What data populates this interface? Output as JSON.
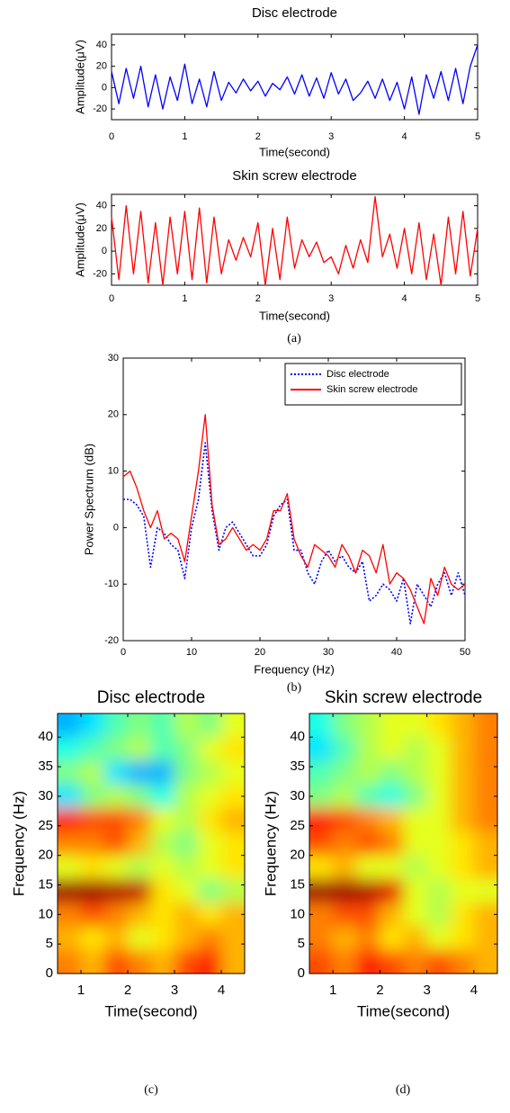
{
  "chart_data": [
    {
      "type": "line",
      "title": "Disc electrode",
      "xlabel": "Time(second)",
      "ylabel": "Amplitude(μV)",
      "xlim": [
        0,
        5
      ],
      "xticks": [
        0,
        1,
        2,
        3,
        4,
        5
      ],
      "ylim": [
        -30,
        50
      ],
      "yticks": [
        -20,
        0,
        20,
        40
      ],
      "series": [
        {
          "name": "Disc electrode",
          "color": "#0000ff",
          "linestyle": "solid",
          "x": [
            0,
            0.1,
            0.2,
            0.3,
            0.4,
            0.5,
            0.6,
            0.7,
            0.8,
            0.9,
            1,
            1.1,
            1.2,
            1.3,
            1.4,
            1.5,
            1.6,
            1.7,
            1.8,
            1.9,
            2,
            2.1,
            2.2,
            2.3,
            2.4,
            2.5,
            2.6,
            2.7,
            2.8,
            2.9,
            3,
            3.1,
            3.2,
            3.3,
            3.4,
            3.5,
            3.6,
            3.7,
            3.8,
            3.9,
            4,
            4.1,
            4.2,
            4.3,
            4.4,
            4.5,
            4.6,
            4.7,
            4.8,
            4.9,
            5
          ],
          "values": [
            15,
            -15,
            18,
            -10,
            20,
            -18,
            12,
            -20,
            10,
            -12,
            22,
            -15,
            8,
            -18,
            15,
            -12,
            5,
            -5,
            8,
            -3,
            6,
            -8,
            4,
            -2,
            10,
            -6,
            12,
            -8,
            9,
            -10,
            14,
            -6,
            8,
            -12,
            -5,
            6,
            -10,
            8,
            -12,
            5,
            -20,
            10,
            -25,
            12,
            -10,
            15,
            -12,
            18,
            -15,
            20,
            40
          ]
        }
      ]
    },
    {
      "type": "line",
      "title": "Skin screw electrode",
      "xlabel": "Time(second)",
      "ylabel": "Amplitude(μV)",
      "annotation": "(a)",
      "xlim": [
        0,
        5
      ],
      "xticks": [
        0,
        1,
        2,
        3,
        4,
        5
      ],
      "ylim": [
        -30,
        50
      ],
      "yticks": [
        -20,
        0,
        20,
        40
      ],
      "series": [
        {
          "name": "Skin screw electrode",
          "color": "#ff0000",
          "linestyle": "solid",
          "x": [
            0,
            0.1,
            0.2,
            0.3,
            0.4,
            0.5,
            0.6,
            0.7,
            0.8,
            0.9,
            1,
            1.1,
            1.2,
            1.3,
            1.4,
            1.5,
            1.6,
            1.7,
            1.8,
            1.9,
            2,
            2.1,
            2.2,
            2.3,
            2.4,
            2.5,
            2.6,
            2.7,
            2.8,
            2.9,
            3,
            3.1,
            3.2,
            3.3,
            3.4,
            3.5,
            3.6,
            3.7,
            3.8,
            3.9,
            4,
            4.1,
            4.2,
            4.3,
            4.4,
            4.5,
            4.6,
            4.7,
            4.8,
            4.9,
            5
          ],
          "values": [
            30,
            -25,
            40,
            -20,
            35,
            -28,
            25,
            -30,
            30,
            -20,
            35,
            -25,
            38,
            -28,
            30,
            -20,
            10,
            -8,
            12,
            -5,
            25,
            -30,
            20,
            -25,
            30,
            -15,
            10,
            -5,
            8,
            -10,
            -5,
            -20,
            5,
            -15,
            10,
            -10,
            48,
            -5,
            15,
            -15,
            20,
            -20,
            25,
            -25,
            15,
            -30,
            30,
            -20,
            35,
            -22,
            20
          ]
        }
      ]
    },
    {
      "type": "line",
      "xlabel": "Frequency (Hz)",
      "ylabel": "Power Spectrum (dB)",
      "annotation": "(b)",
      "legend": "upper right",
      "xlim": [
        0,
        50
      ],
      "xticks": [
        0,
        10,
        20,
        30,
        40,
        50
      ],
      "ylim": [
        -20,
        30
      ],
      "yticks": [
        -20,
        -10,
        0,
        10,
        20,
        30
      ],
      "series": [
        {
          "name": "Disc electrode",
          "color": "#0000ff",
          "linestyle": "dotted",
          "x": [
            0,
            1,
            2,
            3,
            4,
            5,
            6,
            7,
            8,
            9,
            10,
            11,
            12,
            13,
            14,
            15,
            16,
            17,
            18,
            19,
            20,
            21,
            22,
            23,
            24,
            25,
            26,
            27,
            28,
            29,
            30,
            31,
            32,
            33,
            34,
            35,
            36,
            37,
            38,
            39,
            40,
            41,
            42,
            43,
            44,
            45,
            46,
            47,
            48,
            49,
            50
          ],
          "values": [
            5,
            5,
            4,
            2,
            -7,
            0,
            -1,
            -3,
            -4,
            -9,
            0,
            5,
            15,
            3,
            -4,
            0,
            1,
            -1,
            -3,
            -5,
            -5,
            -3,
            2,
            4,
            5,
            -4,
            -4,
            -8,
            -10,
            -6,
            -4,
            -6,
            -5,
            -7,
            -8,
            -6,
            -13,
            -12,
            -10,
            -11,
            -13,
            -9,
            -17,
            -10,
            -12,
            -14,
            -10,
            -8,
            -12,
            -8,
            -12
          ]
        },
        {
          "name": "Skin screw electrode",
          "color": "#ff0000",
          "linestyle": "solid",
          "x": [
            0,
            1,
            2,
            3,
            4,
            5,
            6,
            7,
            8,
            9,
            10,
            11,
            12,
            13,
            14,
            15,
            16,
            17,
            18,
            19,
            20,
            21,
            22,
            23,
            24,
            25,
            26,
            27,
            28,
            29,
            30,
            31,
            32,
            33,
            34,
            35,
            36,
            37,
            38,
            39,
            40,
            41,
            42,
            43,
            44,
            45,
            46,
            47,
            48,
            49,
            50
          ],
          "values": [
            9,
            10,
            7,
            3,
            0,
            3,
            -2,
            -1,
            -2,
            -6,
            2,
            10,
            20,
            4,
            -3,
            -2,
            0,
            -2,
            -4,
            -3,
            -4,
            -2,
            3,
            3,
            6,
            -2,
            -5,
            -7,
            -3,
            -4,
            -5,
            -7,
            -3,
            -5,
            -8,
            -4,
            -5,
            -8,
            -3,
            -10,
            -8,
            -9,
            -11,
            -14,
            -17,
            -9,
            -12,
            -7,
            -10,
            -11,
            -10
          ]
        }
      ]
    },
    {
      "type": "heatmap",
      "title": "Disc electrode",
      "xlabel": "Time(second)",
      "ylabel": "Frequency (Hz)",
      "annotation": "(c)",
      "colormap": "jet",
      "zlim": [
        0,
        1
      ],
      "xlim": [
        0.5,
        4.5
      ],
      "xticks": [
        1,
        2,
        3,
        4
      ],
      "ylim": [
        0,
        44
      ],
      "yticks": [
        0,
        5,
        10,
        15,
        20,
        25,
        30,
        35,
        40
      ],
      "x": [
        0.75,
        1.25,
        1.75,
        2.25,
        2.75,
        3.25,
        3.75,
        4.25
      ],
      "y": [
        2,
        6,
        10,
        14,
        18,
        22,
        26,
        30,
        34,
        38,
        42
      ],
      "z": [
        [
          0.75,
          0.7,
          0.8,
          0.75,
          0.7,
          0.8,
          0.85,
          0.7
        ],
        [
          0.7,
          0.65,
          0.7,
          0.6,
          0.65,
          0.7,
          0.75,
          0.7
        ],
        [
          0.75,
          0.8,
          0.75,
          0.7,
          0.65,
          0.7,
          0.65,
          0.7
        ],
        [
          0.97,
          0.97,
          0.95,
          0.93,
          0.65,
          0.6,
          0.5,
          0.55
        ],
        [
          0.6,
          0.65,
          0.6,
          0.55,
          0.6,
          0.55,
          0.6,
          0.65
        ],
        [
          0.75,
          0.75,
          0.8,
          0.7,
          0.55,
          0.5,
          0.6,
          0.65
        ],
        [
          0.85,
          0.8,
          0.8,
          0.75,
          0.6,
          0.55,
          0.65,
          0.7
        ],
        [
          0.35,
          0.5,
          0.55,
          0.5,
          0.4,
          0.55,
          0.6,
          0.65
        ],
        [
          0.5,
          0.55,
          0.35,
          0.3,
          0.3,
          0.5,
          0.55,
          0.6
        ],
        [
          0.4,
          0.45,
          0.5,
          0.55,
          0.45,
          0.5,
          0.6,
          0.65
        ],
        [
          0.3,
          0.35,
          0.45,
          0.5,
          0.45,
          0.55,
          0.5,
          0.6
        ]
      ]
    },
    {
      "type": "heatmap",
      "title": "Skin screw electrode",
      "xlabel": "Time(second)",
      "ylabel": "Frequency (Hz)",
      "annotation": "(d)",
      "colormap": "jet",
      "zlim": [
        0,
        1
      ],
      "xlim": [
        0.5,
        4.5
      ],
      "xticks": [
        1,
        2,
        3,
        4
      ],
      "ylim": [
        0,
        44
      ],
      "yticks": [
        0,
        5,
        10,
        15,
        20,
        25,
        30,
        35,
        40
      ],
      "x": [
        0.75,
        1.25,
        1.75,
        2.25,
        2.75,
        3.25,
        3.75,
        4.25
      ],
      "y": [
        2,
        6,
        10,
        14,
        18,
        22,
        26,
        30,
        34,
        38,
        42
      ],
      "z": [
        [
          0.8,
          0.75,
          0.85,
          0.8,
          0.75,
          0.8,
          0.75,
          0.7
        ],
        [
          0.75,
          0.7,
          0.75,
          0.65,
          0.7,
          0.6,
          0.65,
          0.7
        ],
        [
          0.75,
          0.8,
          0.8,
          0.7,
          0.6,
          0.55,
          0.65,
          0.7
        ],
        [
          0.97,
          0.97,
          0.95,
          0.9,
          0.6,
          0.55,
          0.6,
          0.6
        ],
        [
          0.65,
          0.7,
          0.6,
          0.6,
          0.55,
          0.6,
          0.65,
          0.7
        ],
        [
          0.8,
          0.75,
          0.8,
          0.75,
          0.6,
          0.6,
          0.65,
          0.7
        ],
        [
          0.85,
          0.8,
          0.75,
          0.7,
          0.6,
          0.6,
          0.7,
          0.75
        ],
        [
          0.5,
          0.55,
          0.45,
          0.4,
          0.5,
          0.6,
          0.7,
          0.75
        ],
        [
          0.45,
          0.5,
          0.55,
          0.5,
          0.55,
          0.6,
          0.7,
          0.75
        ],
        [
          0.35,
          0.45,
          0.55,
          0.6,
          0.55,
          0.6,
          0.7,
          0.75
        ],
        [
          0.4,
          0.5,
          0.55,
          0.6,
          0.6,
          0.65,
          0.7,
          0.75
        ]
      ]
    }
  ]
}
